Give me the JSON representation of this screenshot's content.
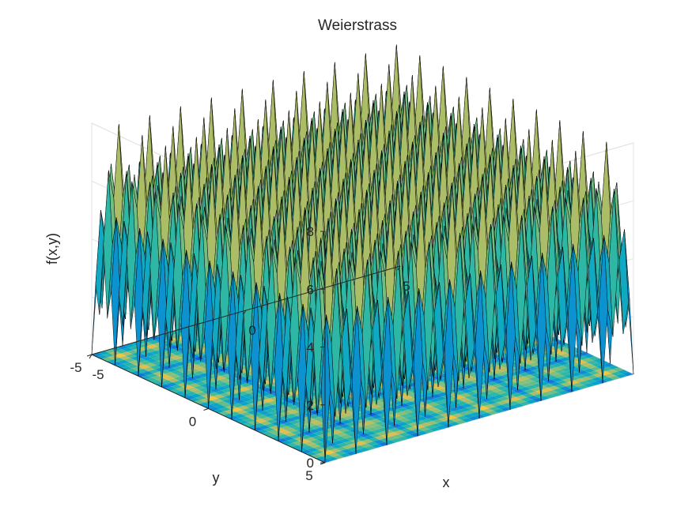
{
  "chart_data": {
    "type": "surface",
    "title": "Weierstrass",
    "xlabel": "x",
    "ylabel": "y",
    "zlabel": "f(x,y)",
    "xlim": [
      -5,
      5
    ],
    "ylim": [
      -5,
      5
    ],
    "zlim": [
      0,
      8
    ],
    "x_ticks": [
      -5,
      0,
      5
    ],
    "y_ticks": [
      -5,
      0,
      5
    ],
    "z_ticks": [
      0,
      2,
      4,
      6,
      8
    ],
    "x_tick_labels": [
      "-5",
      "0",
      "5"
    ],
    "y_tick_labels": [
      "-5",
      "0",
      "5"
    ],
    "z_tick_labels": [
      "0",
      "2",
      "4",
      "6",
      "8"
    ],
    "grid": true,
    "colormap": "parula",
    "colormap_stops": [
      "#352a87",
      "#0f5cdd",
      "#1481d6",
      "#06a4ca",
      "#2eb7a4",
      "#87bf77",
      "#d1bb59",
      "#fec832",
      "#f9fb0e"
    ],
    "contour_floor": true,
    "surface_peak": 8,
    "surface_min": 0
  }
}
